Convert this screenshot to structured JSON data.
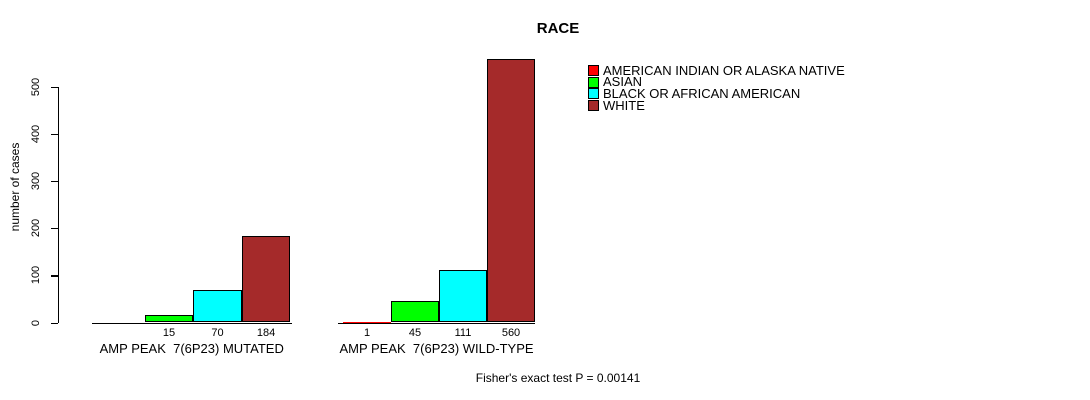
{
  "title": "RACE",
  "y_axis": {
    "label": "number of cases",
    "ticks": [
      0,
      100,
      200,
      300,
      400,
      500
    ]
  },
  "footer": "Fisher's exact test P = 0.00141",
  "chart_data": {
    "type": "bar",
    "title": "RACE",
    "xlabel": "",
    "ylabel": "number of cases",
    "ylim": [
      0,
      560
    ],
    "y_ticks": [
      0,
      100,
      200,
      300,
      400,
      500
    ],
    "grid": false,
    "legend_position": "top-right",
    "categories": [
      "AMERICAN INDIAN OR ALASKA NATIVE",
      "ASIAN",
      "BLACK OR AFRICAN AMERICAN",
      "WHITE"
    ],
    "colors": [
      "#FF0000",
      "#00FF00",
      "#00FFFF",
      "#A52A2A"
    ],
    "groups": [
      {
        "label": "AMP PEAK  7(6P23) MUTATED",
        "values": [
          0,
          15,
          70,
          184
        ],
        "bar_labels": [
          "",
          "15",
          "70",
          "184"
        ]
      },
      {
        "label": "AMP PEAK  7(6P23) WILD-TYPE",
        "values": [
          1,
          45,
          111,
          560
        ],
        "bar_labels": [
          "1",
          "45",
          "111",
          "560"
        ]
      }
    ],
    "annotation": "Fisher's exact test P = 0.00141"
  }
}
